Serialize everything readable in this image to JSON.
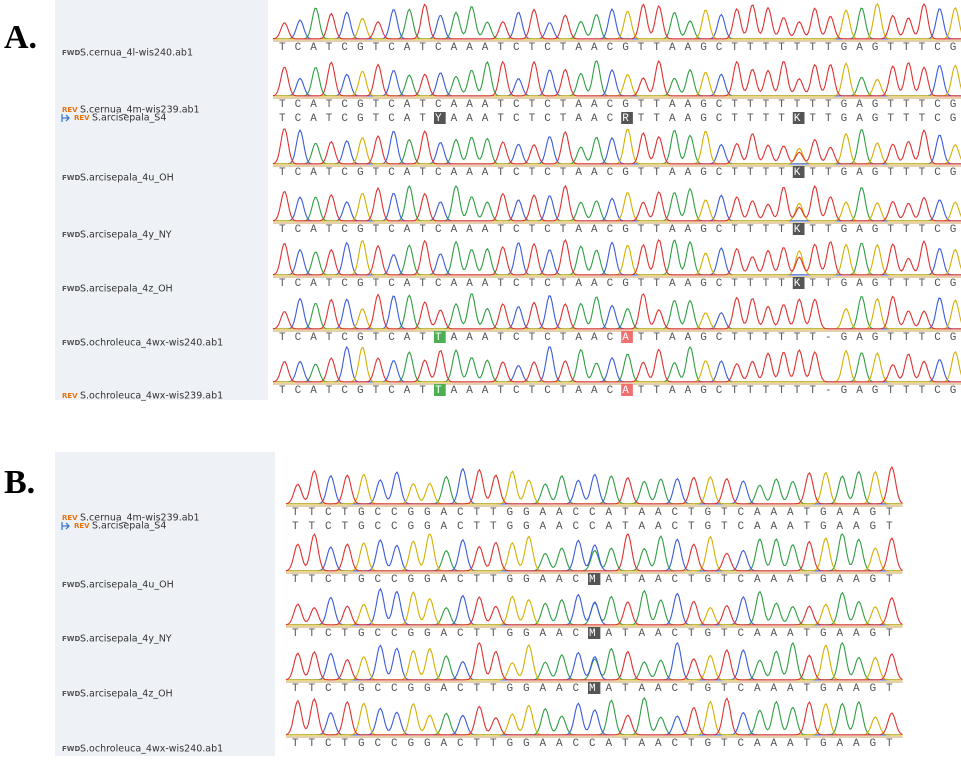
{
  "panels": [
    {
      "label": "A.",
      "tracks": [
        {
          "tag": "FWD",
          "name": "S.cernua_4l-wis240.ab1",
          "sequence": "TCATCGTCATCAAATCTCTAACGTTAAGCTTTTTTTGAGTTTCG"
        },
        {
          "tag": "REV",
          "name": "S.cernua_4m-wis239.ab1",
          "sequence": "TCATCGTCATCAAATCTCTAACGTTAAGCTTTTTTTGAGTTTCG"
        },
        {
          "tag": "REV",
          "name": "S.arcisepala_S4",
          "consensus": true,
          "sequence": "TCATCGTCATYAAATCTCTAACRTTAAGCTTTTKTTGAGTTTCG"
        },
        {
          "tag": "FWD",
          "name": "S.arcisepala_4u_OH",
          "sequence": "TCATCGTCATCAAATCTCTAACGTTAAGCTTTTKTTGAGTTTCG"
        },
        {
          "tag": "FWD",
          "name": "S.arcisepala_4y_NY",
          "sequence": "TCATCGTCATCAAATCTCTAACGTTAAGCTTTTKTTGAGTTTCG"
        },
        {
          "tag": "FWD",
          "name": "S.arcisepala_4z_OH",
          "sequence": "TCATCGTCATCAAATCTCTAACGTTAAGCTTTTKTTGAGTTTCG"
        },
        {
          "tag": "FWD",
          "name": "S.ochroleuca_4wx-wis240.ab1",
          "sequence": "TCATCGTCATTAAATCTCTAACATTAAGCTTTTTT-GAGTTTCG"
        },
        {
          "tag": "REV",
          "name": "S.ochroleuca_4wx-wis239.ab1",
          "sequence": "TCATCGTCATTAAATCTCTAACATTAAGCTTTTTT-GAGTTTCG"
        }
      ]
    },
    {
      "label": "B.",
      "tracks": [
        {
          "tag": "REV",
          "name": "S.cernua_4m-wis239.ab1",
          "sequence": "TTCTGCCGGACTTGGAACCATAACTGTCAAATGAAGT"
        },
        {
          "tag": "REV",
          "name": "S.arcisepala_S4",
          "consensus": true,
          "sequence": "TTCTGCCGGACTTGGAACCATAACTGTCAAATGAAGT"
        },
        {
          "tag": "FWD",
          "name": "S.arcisepala_4u_OH",
          "sequence": "TTCTGCCGGACTTGGAACMATAACTGTCAAATGAAGT"
        },
        {
          "tag": "FWD",
          "name": "S.arcisepala_4y_NY",
          "sequence": "TTCTGCCGGACTTGGAACMATAACTGTCAAATGAAGT"
        },
        {
          "tag": "FWD",
          "name": "S.arcisepala_4z_OH",
          "sequence": "TTCTGCCGGACTTGGAACMATAACTGTCAAATGAAGT"
        },
        {
          "tag": "FWD",
          "name": "S.ochroleuca_4wx-wis240.ab1",
          "sequence": "TTCTGCCGGACTTGGAACCATAACTGTCAAATGAAGT"
        }
      ]
    }
  ]
}
